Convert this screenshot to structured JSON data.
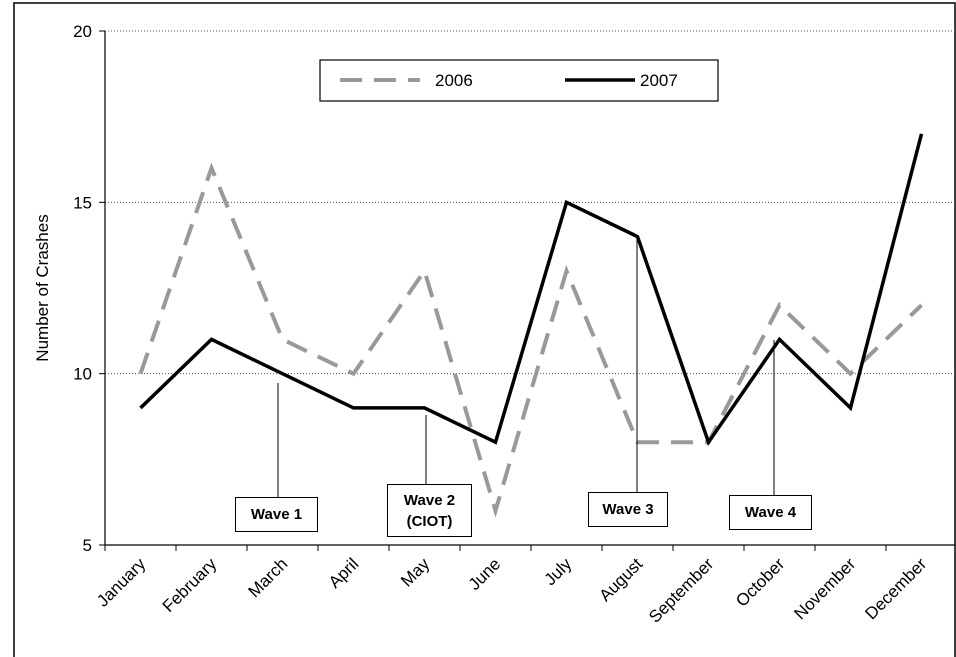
{
  "chart_data": {
    "type": "line",
    "ylabel": "Number of Crashes",
    "categories": [
      "January",
      "February",
      "March",
      "April",
      "May",
      "June",
      "July",
      "August",
      "September",
      "October",
      "November",
      "December"
    ],
    "series": [
      {
        "name": "2006",
        "color": "#999999",
        "dash": true,
        "values": [
          10,
          16,
          11,
          10,
          13,
          6,
          13,
          8,
          8,
          12,
          10,
          12
        ]
      },
      {
        "name": "2007",
        "color": "#000000",
        "dash": false,
        "values": [
          9,
          11,
          10,
          9,
          9,
          8,
          15,
          14,
          8,
          11,
          9,
          17
        ]
      }
    ],
    "ylim": [
      5,
      20
    ],
    "yticks": [
      5,
      10,
      15,
      20
    ],
    "grid": true,
    "legend": "top",
    "annotations": [
      "Wave 1",
      "Wave 2 (CIOT)",
      "Wave 3",
      "Wave 4"
    ]
  }
}
